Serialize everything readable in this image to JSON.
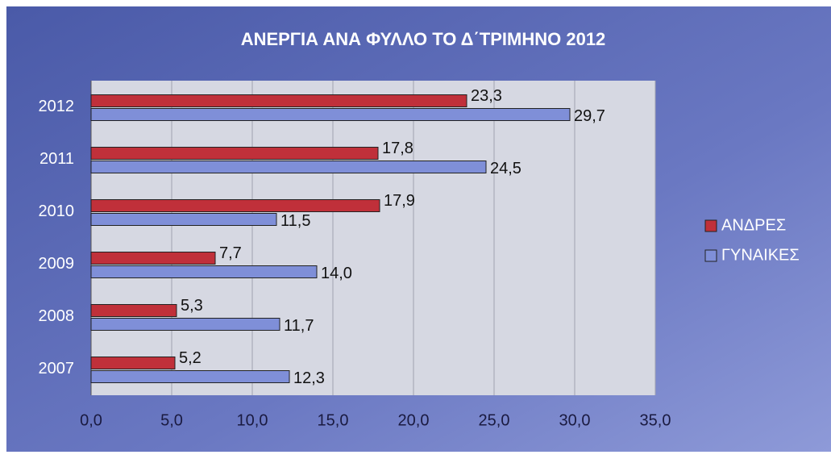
{
  "chart_data": {
    "type": "hbar",
    "title": "ΑΝΕΡΓΙΑ ΑΝΑ ΦΥΛΛΟ ΤΟ Δ΄ΤΡΙΜΗΝΟ 2012",
    "categories": [
      "2012",
      "2011",
      "2010",
      "2009",
      "2008",
      "2007"
    ],
    "series": [
      {
        "name": "ΑΝΔΡΕΣ",
        "color": "#c0303a",
        "values": [
          23.3,
          17.8,
          17.9,
          7.7,
          5.3,
          5.2
        ],
        "value_labels": [
          "23,3",
          "17,8",
          "17,9",
          "7,7",
          "5,3",
          "5,2"
        ]
      },
      {
        "name": "ΓΥΝΑΙΚΕΣ",
        "color": "#7f8fd8",
        "values": [
          29.7,
          24.5,
          11.5,
          14.0,
          11.7,
          12.3
        ],
        "value_labels": [
          "29,7",
          "24,5",
          "11,5",
          "14,0",
          "11,7",
          "12,3"
        ]
      }
    ],
    "xlim": [
      0,
      35
    ],
    "xticks": [
      {
        "value": 0,
        "label": "0,0"
      },
      {
        "value": 5,
        "label": "5,0"
      },
      {
        "value": 10,
        "label": "10,0"
      },
      {
        "value": 15,
        "label": "15,0"
      },
      {
        "value": 20,
        "label": "20,0"
      },
      {
        "value": 25,
        "label": "25,0"
      },
      {
        "value": 30,
        "label": "30,0"
      },
      {
        "value": 35,
        "label": "35,0"
      }
    ],
    "grid": true,
    "legend": "right"
  }
}
